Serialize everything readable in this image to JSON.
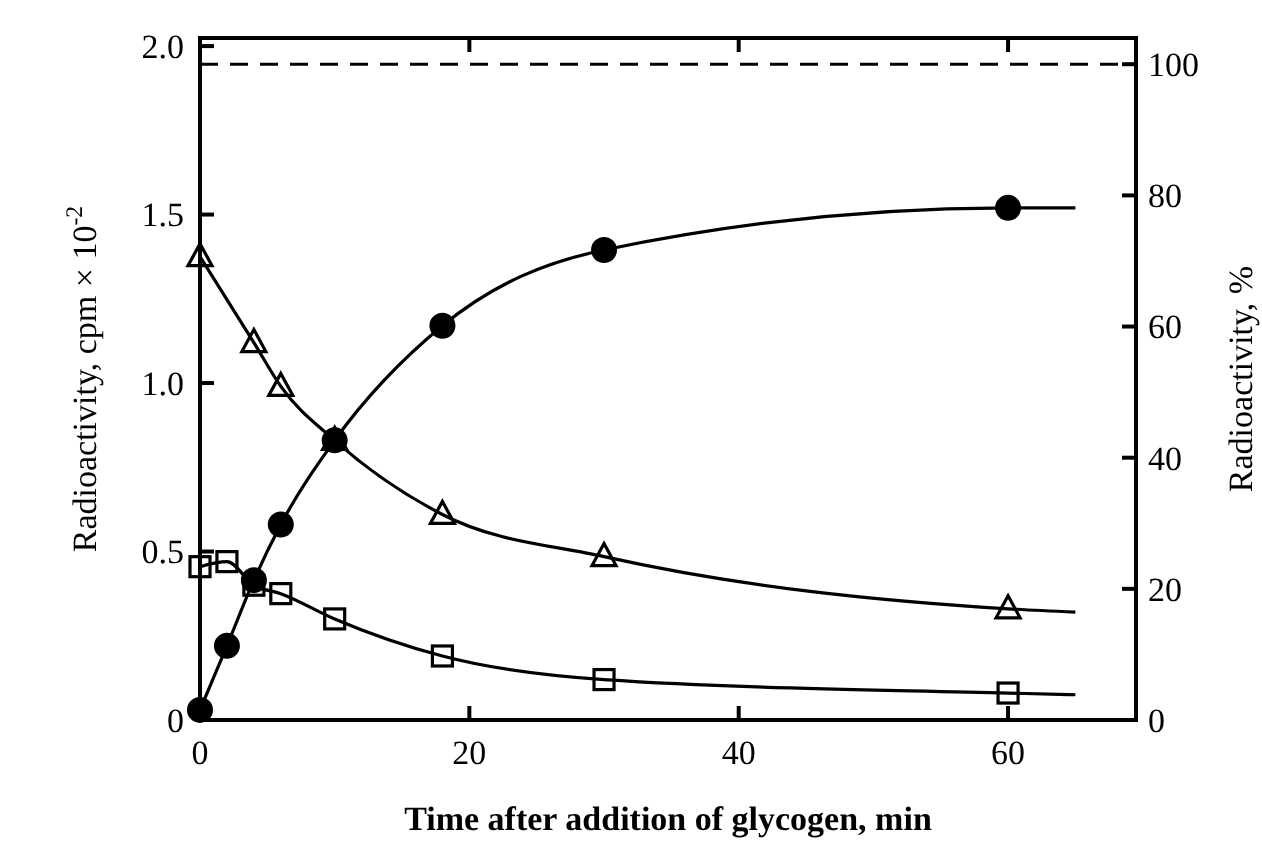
{
  "chart_data": {
    "type": "scatter",
    "xlabel": "Time after addition of glycogen, min",
    "ylabel": "Radioactivity, cpm × 10$^{-2}$",
    "y2label": "Radioactivity, %",
    "xlim": [
      0,
      69.5
    ],
    "xticks": [
      0,
      20,
      40,
      60
    ],
    "ylim": [
      0,
      2.024
    ],
    "yticks": [
      0,
      {
        "value": 0.5,
        "label": "0.5"
      },
      {
        "value": 1,
        "label": "1.0"
      },
      {
        "value": 1.5,
        "label": "1.5"
      },
      {
        "value": 2,
        "label": "2.0"
      }
    ],
    "y2lim": [
      0,
      104
    ],
    "y2ticks": [
      0,
      20,
      40,
      60,
      80,
      100
    ],
    "grid": false,
    "legend": false,
    "ref_lines": [
      {
        "axis": "y2",
        "value": 100,
        "line_style": "dashed",
        "color": "#000000"
      }
    ],
    "series": [
      {
        "type": "line",
        "marker": "none",
        "color": "#000000",
        "x": [
          0,
          2,
          4,
          6,
          10,
          18,
          30,
          60,
          65
        ],
        "values": [
          0.03,
          0.22,
          0.415,
          0.58,
          0.83,
          1.17,
          1.395,
          1.52,
          1.52
        ]
      },
      {
        "type": "line",
        "marker": "none",
        "color": "#000000",
        "x": [
          0,
          4,
          6,
          10,
          18,
          30,
          60,
          65
        ],
        "values": [
          1.375,
          1.12,
          0.99,
          0.83,
          0.61,
          0.485,
          0.33,
          0.32
        ]
      },
      {
        "type": "line",
        "marker": "none",
        "color": "#000000",
        "x": [
          0,
          2,
          4,
          6,
          10,
          18,
          30,
          60,
          65
        ],
        "values": [
          0.455,
          0.47,
          0.4,
          0.375,
          0.3,
          0.19,
          0.12,
          0.08,
          0.075
        ]
      },
      {
        "type": "scatter",
        "marker": "circle",
        "color": "#000000",
        "x": [
          0,
          2,
          4,
          6,
          10,
          18,
          30,
          60
        ],
        "values": [
          0.03,
          0.22,
          0.415,
          0.58,
          0.83,
          1.17,
          1.395,
          1.52
        ]
      },
      {
        "type": "scatter",
        "marker": "triangle",
        "color": "#000000",
        "x": [
          0,
          4,
          6,
          10,
          18,
          30,
          60
        ],
        "values": [
          1.375,
          1.12,
          0.99,
          0.83,
          0.61,
          0.485,
          0.33
        ]
      },
      {
        "type": "scatter",
        "marker": "square",
        "color": "#000000",
        "x": [
          0,
          2,
          4,
          6,
          10,
          18,
          30,
          60
        ],
        "values": [
          0.455,
          0.47,
          0.4,
          0.375,
          0.3,
          0.19,
          0.12,
          0.08
        ]
      }
    ]
  }
}
